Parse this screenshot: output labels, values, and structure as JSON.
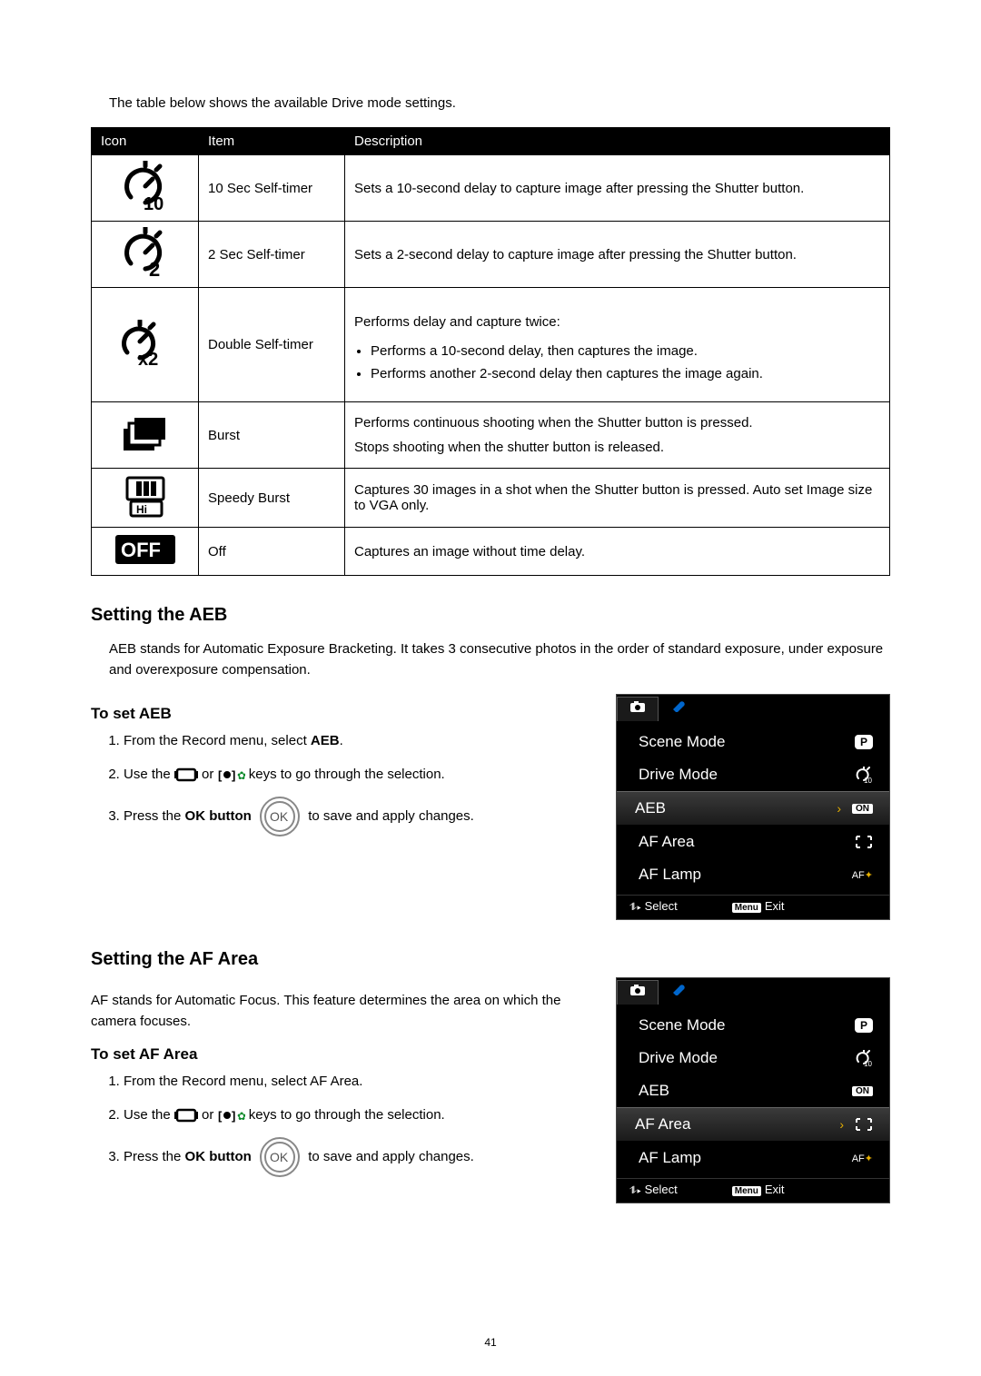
{
  "page_number": "41",
  "intro_text": "The table below shows the available Drive mode settings.",
  "table": {
    "headers": {
      "icon": "Icon",
      "item": "Item",
      "description": "Description"
    },
    "rows": [
      {
        "item": "10 Sec Self-timer",
        "desc_lines": [
          "Sets a 10-second delay to capture image after pressing the Shutter button."
        ],
        "bullets": [],
        "icon": "timer-10"
      },
      {
        "item": "2 Sec Self-timer",
        "desc_lines": [
          "Sets a 2-second delay to capture image after pressing the Shutter button."
        ],
        "bullets": [],
        "icon": "timer-2"
      },
      {
        "item": "Double Self-timer",
        "desc_lines": [
          "Performs delay and capture twice:"
        ],
        "bullets": [
          "Performs a 10-second delay, then captures the image.",
          "Performs another 2-second delay then captures the image again."
        ],
        "icon": "timer-x2"
      },
      {
        "item": "Burst",
        "desc_lines": [
          "Performs continuous shooting when the Shutter button is pressed.",
          "Stops shooting when the shutter button is released."
        ],
        "bullets": [],
        "icon": "burst"
      },
      {
        "item": "Speedy Burst",
        "desc_lines": [
          "Captures 30 images in a shot when the Shutter button is pressed. Auto set Image size to VGA only."
        ],
        "bullets": [],
        "icon": "speedy-burst"
      },
      {
        "item": "Off",
        "desc_lines": [
          "Captures an image without time delay."
        ],
        "bullets": [],
        "icon": "off"
      }
    ]
  },
  "sections": {
    "aeb": {
      "heading": "Setting the AEB",
      "intro": "AEB stands for Automatic Exposure Bracketing. It takes 3 consecutive photos in the order of standard exposure, under exposure and overexposure compensation.",
      "sub": "To set AEB",
      "steps": {
        "s1_prefix": "From the Record menu, select ",
        "s1_bold": "AEB",
        "s1_suffix": ".",
        "s2_prefix": "Use the ",
        "s2_mid": " or ",
        "s2_suffix": " keys to go through the selection.",
        "s3_prefix": "Press the ",
        "s3_bold": "OK button",
        "s3_suffix": " to save and apply changes."
      }
    },
    "afarea": {
      "heading": "Setting the AF Area",
      "intro": "AF stands for Automatic Focus. This feature determines the area on which the camera focuses.",
      "sub": "To set AF Area",
      "steps": {
        "s1": "From the Record menu, select AF Area.",
        "s2_prefix": "Use the ",
        "s2_mid": " or ",
        "s2_suffix": " keys to go through the selection.",
        "s3_prefix": "Press the ",
        "s3_bold": "OK button",
        "s3_suffix": " to save and apply changes."
      }
    }
  },
  "menu": {
    "tabs": {
      "camera_glyph": "📷",
      "wrench_glyph": "🔧"
    },
    "rows": [
      {
        "label": "Scene Mode",
        "value_type": "p-badge",
        "value": "P"
      },
      {
        "label": "Drive Mode",
        "value_type": "timer10",
        "value": ""
      },
      {
        "label": "AEB",
        "value_type": "on",
        "value": "ON"
      },
      {
        "label": "AF Area",
        "value_type": "brackets",
        "value": ""
      },
      {
        "label": "AF Lamp",
        "value_type": "aflamp",
        "value": "AF"
      }
    ],
    "selected_index_aeb": 2,
    "selected_index_af": 3,
    "footer": {
      "select": "Select",
      "menu_btn": "Menu",
      "exit": "Exit",
      "nav_glyph": "⥮▸"
    }
  },
  "colors": {
    "header_bg": "#000000",
    "header_fg": "#ffffff",
    "border": "#000000",
    "menu_bg": "#000000",
    "menu_fg": "#ffffff",
    "menu_accent": "#e7b000"
  },
  "ok_label": "OK"
}
